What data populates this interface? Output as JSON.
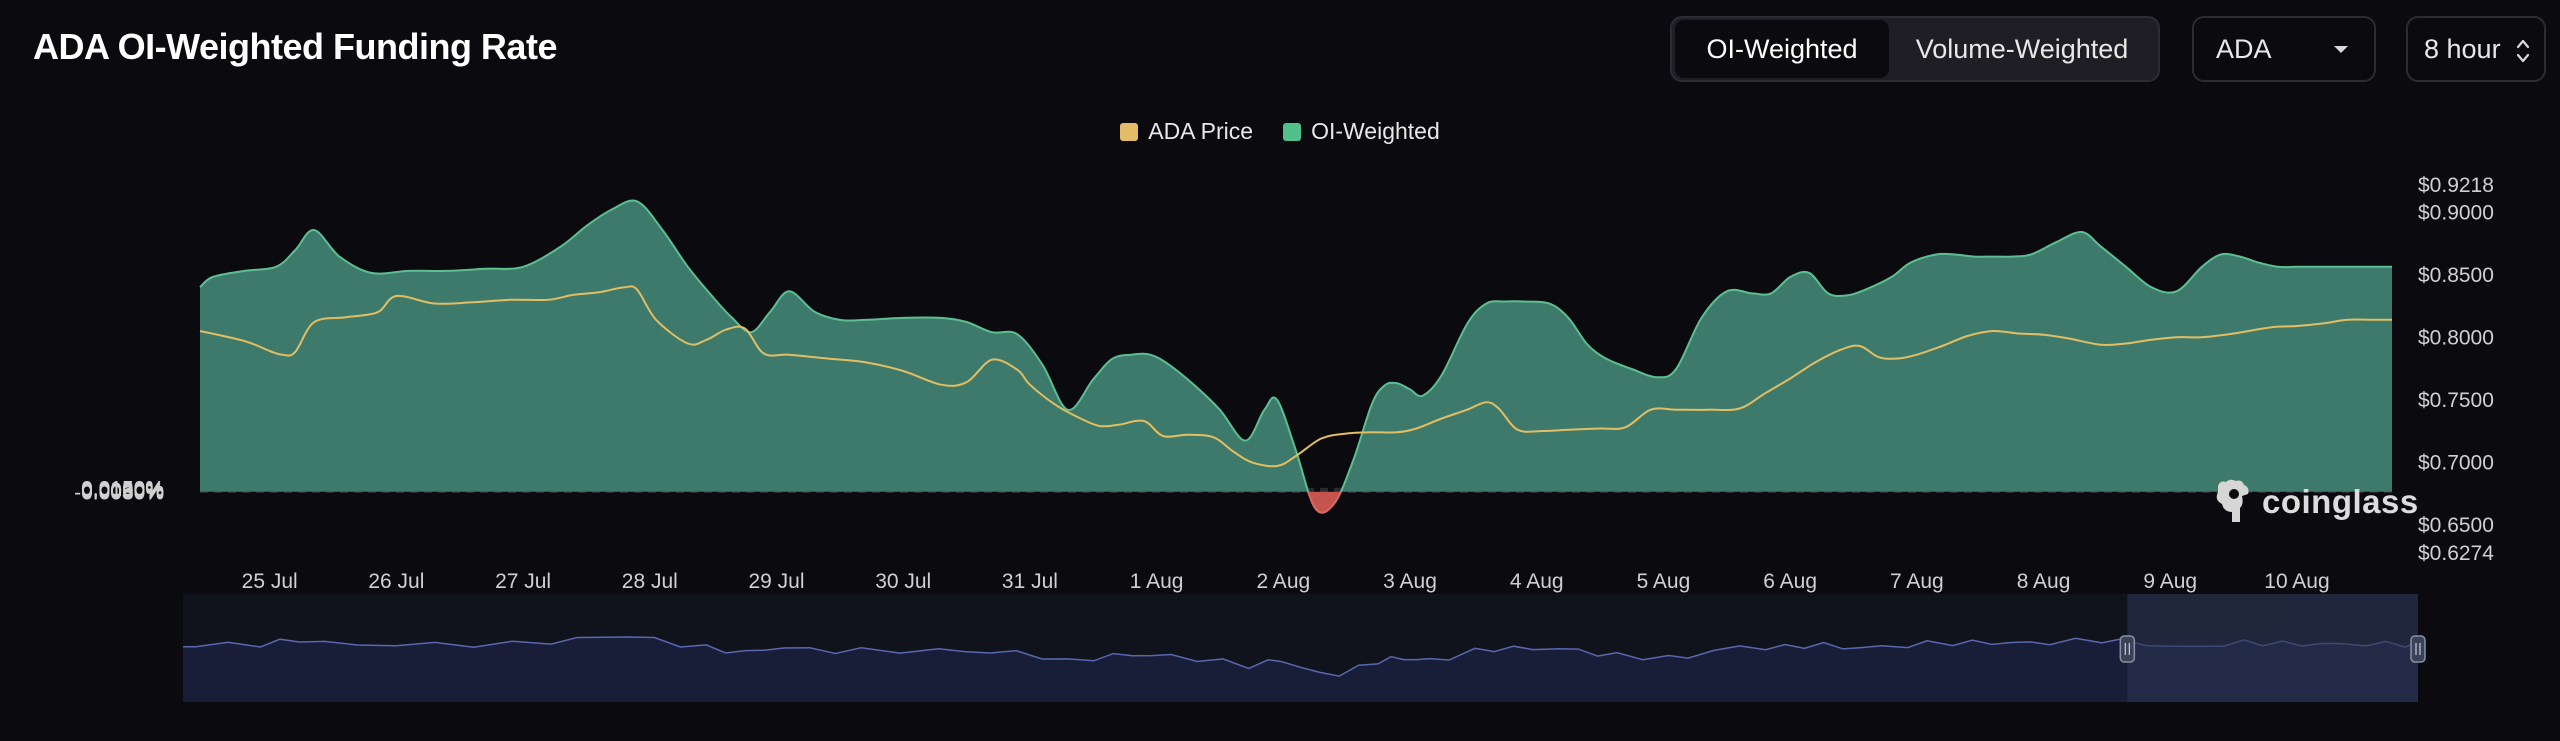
{
  "header": {
    "title": "ADA OI-Weighted Funding Rate",
    "tabs": [
      {
        "label": "OI-Weighted",
        "active": true
      },
      {
        "label": "Volume-Weighted",
        "active": false
      }
    ],
    "asset_select": {
      "value": "ADA"
    },
    "interval_select": {
      "value": "8 hour"
    }
  },
  "watermark": "coinglass",
  "colors": {
    "background": "#0b0b0f",
    "oi_fill": "#3d7a6b",
    "oi_line": "#5cbf91",
    "negative": "#c5534e",
    "price_line": "#e2bd62",
    "legend_price": "#e5bc66",
    "legend_oi": "#52c08a"
  },
  "chart_data": {
    "type": "area",
    "legend": [
      {
        "name": "ADA Price",
        "color": "#e5bc66"
      },
      {
        "name": "OI-Weighted",
        "color": "#52c08a"
      }
    ],
    "x_tick_labels": [
      "25 Jul",
      "26 Jul",
      "27 Jul",
      "28 Jul",
      "29 Jul",
      "30 Jul",
      "31 Jul",
      "1 Aug",
      "2 Aug",
      "3 Aug",
      "4 Aug",
      "5 Aug",
      "6 Aug",
      "7 Aug",
      "8 Aug",
      "9 Aug",
      "10 Aug"
    ],
    "x_range_days": [
      24.45,
      41.75
    ],
    "left_axis": {
      "ticks": [
        "0.0150%",
        "0.0120%",
        "0.0090%",
        "0.0060%",
        "0.0030%",
        "0%",
        "-0.0030%"
      ],
      "min": -0.003,
      "max": 0.015
    },
    "right_axis": {
      "ticks": [
        "$0.9218",
        "$0.9000",
        "$0.8500",
        "$0.8000",
        "$0.7500",
        "$0.7000",
        "$0.6500",
        "$0.6274"
      ],
      "min": 0.6274,
      "max": 0.9218
    },
    "series": [
      {
        "name": "OI-Weighted",
        "axis": "left",
        "x_days": [
          24.45,
          24.55,
          24.8,
          25.05,
          25.2,
          25.35,
          25.55,
          25.8,
          26.1,
          26.4,
          26.7,
          27.0,
          27.3,
          27.5,
          27.7,
          27.9,
          28.1,
          28.3,
          28.5,
          28.65,
          28.8,
          28.95,
          29.1,
          29.3,
          29.5,
          29.7,
          30.0,
          30.3,
          30.5,
          30.7,
          30.9,
          31.1,
          31.3,
          31.5,
          31.65,
          31.8,
          31.95,
          32.1,
          32.3,
          32.5,
          32.7,
          32.85,
          32.95,
          33.1,
          33.25,
          33.4,
          33.55,
          33.7,
          33.8,
          33.9,
          34.0,
          34.1,
          34.25,
          34.45,
          34.6,
          34.75,
          34.9,
          35.1,
          35.25,
          35.4,
          35.55,
          35.75,
          35.95,
          36.1,
          36.3,
          36.5,
          36.7,
          36.85,
          37.0,
          37.15,
          37.3,
          37.45,
          37.6,
          37.8,
          37.95,
          38.15,
          38.3,
          38.45,
          38.6,
          38.75,
          38.9,
          39.1,
          39.3,
          39.45,
          39.65,
          39.85,
          40.05,
          40.25,
          40.4,
          40.55,
          40.7,
          40.85,
          41.0,
          41.15,
          41.35,
          41.5,
          41.65,
          41.75
        ],
        "y": [
          0.01,
          0.0105,
          0.0108,
          0.011,
          0.0118,
          0.0128,
          0.0115,
          0.0107,
          0.0108,
          0.0108,
          0.0109,
          0.011,
          0.012,
          0.013,
          0.0138,
          0.0142,
          0.0128,
          0.011,
          0.0095,
          0.0085,
          0.0078,
          0.0088,
          0.0098,
          0.0088,
          0.0084,
          0.0084,
          0.0085,
          0.0085,
          0.0083,
          0.0078,
          0.0077,
          0.0062,
          0.004,
          0.0055,
          0.0065,
          0.0067,
          0.0067,
          0.0062,
          0.0052,
          0.004,
          0.0025,
          0.004,
          0.0045,
          0.002,
          -0.0008,
          -0.0006,
          0.0015,
          0.0043,
          0.0052,
          0.0053,
          0.005,
          0.0047,
          0.0057,
          0.0082,
          0.0092,
          0.0093,
          0.0093,
          0.0092,
          0.0085,
          0.0072,
          0.0065,
          0.006,
          0.0056,
          0.006,
          0.0085,
          0.0098,
          0.0097,
          0.0097,
          0.0105,
          0.0107,
          0.0097,
          0.0096,
          0.0099,
          0.0105,
          0.0112,
          0.0116,
          0.0116,
          0.0115,
          0.0115,
          0.0115,
          0.0116,
          0.0122,
          0.0127,
          0.012,
          0.011,
          0.01,
          0.0098,
          0.011,
          0.0116,
          0.0115,
          0.0112,
          0.011,
          0.011,
          0.011,
          0.011,
          0.011,
          0.011,
          0.011
        ]
      },
      {
        "name": "ADA Price",
        "axis": "right",
        "x_days": [
          24.45,
          24.8,
          25.0,
          25.1,
          25.2,
          25.35,
          25.6,
          25.85,
          26.0,
          26.3,
          26.6,
          26.9,
          27.2,
          27.4,
          27.6,
          27.8,
          27.9,
          28.05,
          28.3,
          28.45,
          28.6,
          28.75,
          28.9,
          29.1,
          29.4,
          29.7,
          30.0,
          30.3,
          30.5,
          30.7,
          30.9,
          31.0,
          31.2,
          31.4,
          31.55,
          31.7,
          31.9,
          32.05,
          32.25,
          32.45,
          32.6,
          32.75,
          32.95,
          33.1,
          33.3,
          33.5,
          33.7,
          33.9,
          34.05,
          34.25,
          34.45,
          34.6,
          34.7,
          34.85,
          35.05,
          35.25,
          35.5,
          35.7,
          35.9,
          36.1,
          36.35,
          36.6,
          36.8,
          37.0,
          37.2,
          37.4,
          37.55,
          37.7,
          37.85,
          38.0,
          38.2,
          38.4,
          38.6,
          38.8,
          39.0,
          39.2,
          39.45,
          39.65,
          39.85,
          40.05,
          40.25,
          40.5,
          40.8,
          41.0,
          41.2,
          41.4,
          41.6,
          41.75
        ],
        "y": [
          0.805,
          0.797,
          0.789,
          0.786,
          0.788,
          0.812,
          0.816,
          0.82,
          0.833,
          0.827,
          0.828,
          0.83,
          0.83,
          0.834,
          0.836,
          0.84,
          0.838,
          0.814,
          0.795,
          0.798,
          0.806,
          0.807,
          0.787,
          0.786,
          0.783,
          0.78,
          0.773,
          0.762,
          0.764,
          0.782,
          0.774,
          0.762,
          0.746,
          0.735,
          0.729,
          0.73,
          0.733,
          0.721,
          0.722,
          0.72,
          0.709,
          0.7,
          0.697,
          0.705,
          0.719,
          0.723,
          0.724,
          0.724,
          0.727,
          0.735,
          0.742,
          0.748,
          0.743,
          0.726,
          0.725,
          0.726,
          0.727,
          0.728,
          0.742,
          0.742,
          0.742,
          0.743,
          0.755,
          0.767,
          0.78,
          0.79,
          0.793,
          0.784,
          0.783,
          0.786,
          0.793,
          0.801,
          0.805,
          0.803,
          0.802,
          0.799,
          0.794,
          0.795,
          0.798,
          0.8,
          0.8,
          0.803,
          0.808,
          0.809,
          0.811,
          0.814,
          0.814,
          0.814
        ]
      }
    ],
    "navigator": {
      "x_range_days": [
        24.45,
        41.75
      ],
      "selected_range_days": [
        39.5,
        41.75
      ]
    }
  }
}
